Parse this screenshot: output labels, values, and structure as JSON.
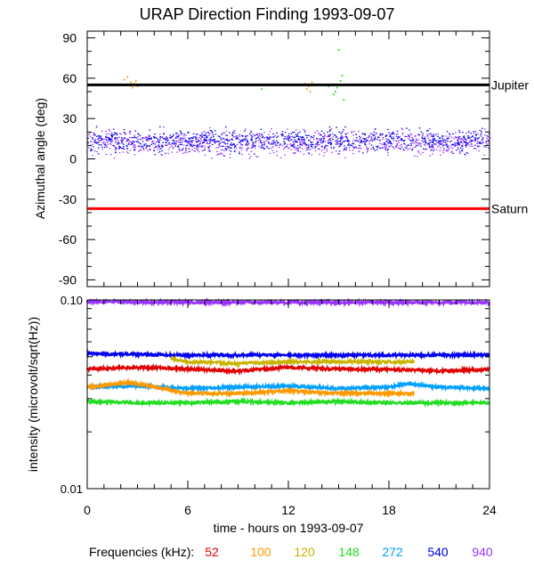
{
  "title": "URAP Direction Finding  1993-09-07",
  "top_panel": {
    "ylabel": "Azimuthal angle (deg)",
    "ylim": [
      -95,
      95
    ],
    "yticks": [
      "90",
      "60",
      "30",
      "0",
      "-30",
      "-60",
      "-90"
    ],
    "ytick_values": [
      90,
      60,
      30,
      0,
      -30,
      -60,
      -90
    ],
    "reference_lines": [
      {
        "label": "Jupiter",
        "value": 55,
        "color": "#000000"
      },
      {
        "label": "Saturn",
        "value": -37,
        "color": "#ff0000"
      }
    ]
  },
  "bottom_panel": {
    "ylabel": "intensity (microvolt/sqrt(Hz))",
    "ylim": [
      0.01,
      0.1
    ],
    "scale": "log",
    "yticks": [
      "0.10",
      "0.01"
    ],
    "ytick_values": [
      0.1,
      0.01
    ]
  },
  "xaxis": {
    "label": "time - hours on 1993-09-07",
    "xlim": [
      0,
      24
    ],
    "ticks": [
      "0",
      "6",
      "12",
      "18",
      "24"
    ],
    "tick_values": [
      0,
      6,
      12,
      18,
      24
    ]
  },
  "legend": {
    "prefix": "Frequencies (kHz):",
    "items": [
      {
        "label": "52",
        "color": "#e00000"
      },
      {
        "label": "100",
        "color": "#ff9900"
      },
      {
        "label": "120",
        "color": "#c8b400"
      },
      {
        "label": "148",
        "color": "#22dd22"
      },
      {
        "label": "272",
        "color": "#00a0ff"
      },
      {
        "label": "540",
        "color": "#0000ee"
      },
      {
        "label": "940",
        "color": "#9933ff"
      }
    ]
  },
  "chart_data": [
    {
      "type": "scatter",
      "title": "URAP Direction Finding  1993-09-07",
      "xlabel": "time - hours on 1993-09-07",
      "ylabel": "Azimuthal angle (deg)",
      "xlim": [
        0,
        24
      ],
      "ylim": [
        -95,
        95
      ],
      "series": [
        {
          "name": "940",
          "color": "#9933ff",
          "x": [
            0,
            24
          ],
          "y": [
            12,
            12
          ],
          "spread": 7
        },
        {
          "name": "540",
          "color": "#0000ee",
          "x": [
            0,
            24
          ],
          "y": [
            14,
            14
          ],
          "spread": 6
        },
        {
          "name": "100",
          "color": "#ff9900",
          "x": [
            2.2,
            2.4,
            2.5,
            2.6,
            2.7,
            2.8,
            2.9,
            3.0,
            13.0,
            13.1,
            13.2,
            13.3,
            13.4
          ],
          "y": [
            59,
            61,
            55,
            57,
            53,
            56,
            58,
            54,
            56,
            52,
            54,
            50,
            57
          ]
        },
        {
          "name": "148",
          "color": "#22dd22",
          "x": [
            10.4,
            14.4,
            14.7,
            14.8,
            14.9,
            15.0,
            15.1,
            15.2,
            15.3
          ],
          "y": [
            52,
            54,
            48,
            50,
            53,
            81,
            58,
            62,
            44
          ]
        }
      ],
      "reference_lines": [
        {
          "name": "Jupiter",
          "y": 55
        },
        {
          "name": "Saturn",
          "y": -37
        }
      ]
    },
    {
      "type": "line",
      "xlabel": "time - hours on 1993-09-07",
      "ylabel": "intensity (microvolt/sqrt(Hz))",
      "xlim": [
        0,
        24
      ],
      "ylim": [
        0.01,
        0.1
      ],
      "yscale": "log",
      "series": [
        {
          "name": "940",
          "color": "#9933ff",
          "x": [
            0,
            6,
            12,
            18,
            24
          ],
          "y": [
            0.098,
            0.097,
            0.097,
            0.097,
            0.097
          ]
        },
        {
          "name": "540",
          "color": "#0000ee",
          "x": [
            0,
            6,
            12,
            18,
            24
          ],
          "y": [
            0.052,
            0.051,
            0.051,
            0.051,
            0.051
          ]
        },
        {
          "name": "120",
          "color": "#c8b400",
          "x": [
            5.0,
            6,
            9,
            12,
            15,
            18,
            19.5
          ],
          "y": [
            0.049,
            0.047,
            0.046,
            0.047,
            0.047,
            0.047,
            0.047
          ]
        },
        {
          "name": "52",
          "color": "#e00000",
          "x": [
            0,
            3,
            6,
            9,
            12,
            15,
            18,
            21,
            24
          ],
          "y": [
            0.043,
            0.044,
            0.043,
            0.042,
            0.044,
            0.043,
            0.043,
            0.042,
            0.043
          ]
        },
        {
          "name": "272",
          "color": "#00a0ff",
          "x": [
            0,
            3,
            6,
            9,
            12,
            15,
            18,
            19,
            21,
            24
          ],
          "y": [
            0.0345,
            0.035,
            0.034,
            0.0345,
            0.035,
            0.034,
            0.0345,
            0.036,
            0.0345,
            0.034
          ]
        },
        {
          "name": "100",
          "color": "#ff9900",
          "x": [
            0,
            2.5,
            6,
            9,
            12,
            15,
            18,
            19.5
          ],
          "y": [
            0.0345,
            0.0365,
            0.032,
            0.032,
            0.033,
            0.032,
            0.032,
            0.032
          ]
        },
        {
          "name": "148",
          "color": "#22dd22",
          "x": [
            0,
            3,
            6,
            9,
            12,
            15,
            18,
            21,
            24
          ],
          "y": [
            0.029,
            0.0285,
            0.0285,
            0.029,
            0.0285,
            0.029,
            0.0285,
            0.0285,
            0.0285
          ]
        }
      ]
    }
  ]
}
